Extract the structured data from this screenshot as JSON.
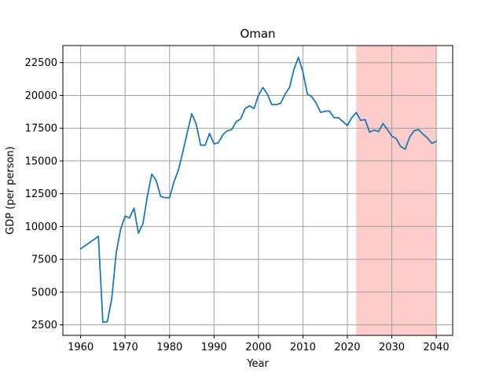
{
  "chart_data": {
    "type": "line",
    "title": "Oman",
    "xlabel": "Year",
    "ylabel": "GDP (per person)",
    "xlim": [
      1956.0,
      2043.7
    ],
    "ylim": [
      1700,
      23800
    ],
    "xticks": [
      1960,
      1970,
      1980,
      1990,
      2000,
      2010,
      2020,
      2030,
      2040
    ],
    "yticks": [
      2500,
      5000,
      7500,
      10000,
      12500,
      15000,
      17500,
      20000,
      22500
    ],
    "grid": true,
    "line_color": "#1f77b4",
    "shaded_region": {
      "x_start": 2022,
      "x_end": 2040,
      "color": "#ffcccc"
    },
    "series": [
      {
        "x": [
          1960,
          1964,
          1965,
          1966,
          1967,
          1968,
          1969,
          1970,
          1971,
          1972,
          1973,
          1974,
          1975,
          1976,
          1977,
          1978,
          1979,
          1980,
          1981,
          1982,
          1983,
          1984,
          1985,
          1986,
          1987,
          1988,
          1989,
          1990,
          1991,
          1992,
          1993,
          1994,
          1995,
          1996,
          1997,
          1998,
          1999,
          2000,
          2001,
          2002,
          2003,
          2004,
          2005,
          2006,
          2007,
          2008,
          2009,
          2010,
          2011,
          2012,
          2013,
          2014,
          2015,
          2016,
          2017,
          2018,
          2019,
          2020,
          2021,
          2022,
          2023,
          2024,
          2025,
          2026,
          2027,
          2028,
          2029,
          2030,
          2031,
          2032,
          2033,
          2034,
          2035,
          2036,
          2037,
          2038,
          2039,
          2040
        ],
        "values": [
          8300,
          9250,
          2700,
          2750,
          4500,
          8000,
          9800,
          10800,
          10650,
          11400,
          9500,
          10200,
          12300,
          14000,
          13500,
          12300,
          12200,
          12200,
          13400,
          14300,
          15700,
          17200,
          18600,
          17800,
          16200,
          16200,
          17100,
          16300,
          16400,
          17000,
          17300,
          17400,
          18000,
          18200,
          19000,
          19200,
          19000,
          20000,
          20600,
          20100,
          19300,
          19300,
          19400,
          20100,
          20600,
          22000,
          22900,
          21800,
          20100,
          19900,
          19400,
          18700,
          18800,
          18800,
          18300,
          18300,
          18000,
          17700,
          18300,
          18700,
          18100,
          18150,
          17200,
          17350,
          17250,
          17850,
          17400,
          16900,
          16700,
          16100,
          15900,
          16800,
          17300,
          17400,
          17050,
          16750,
          16350,
          16500
        ]
      }
    ]
  }
}
